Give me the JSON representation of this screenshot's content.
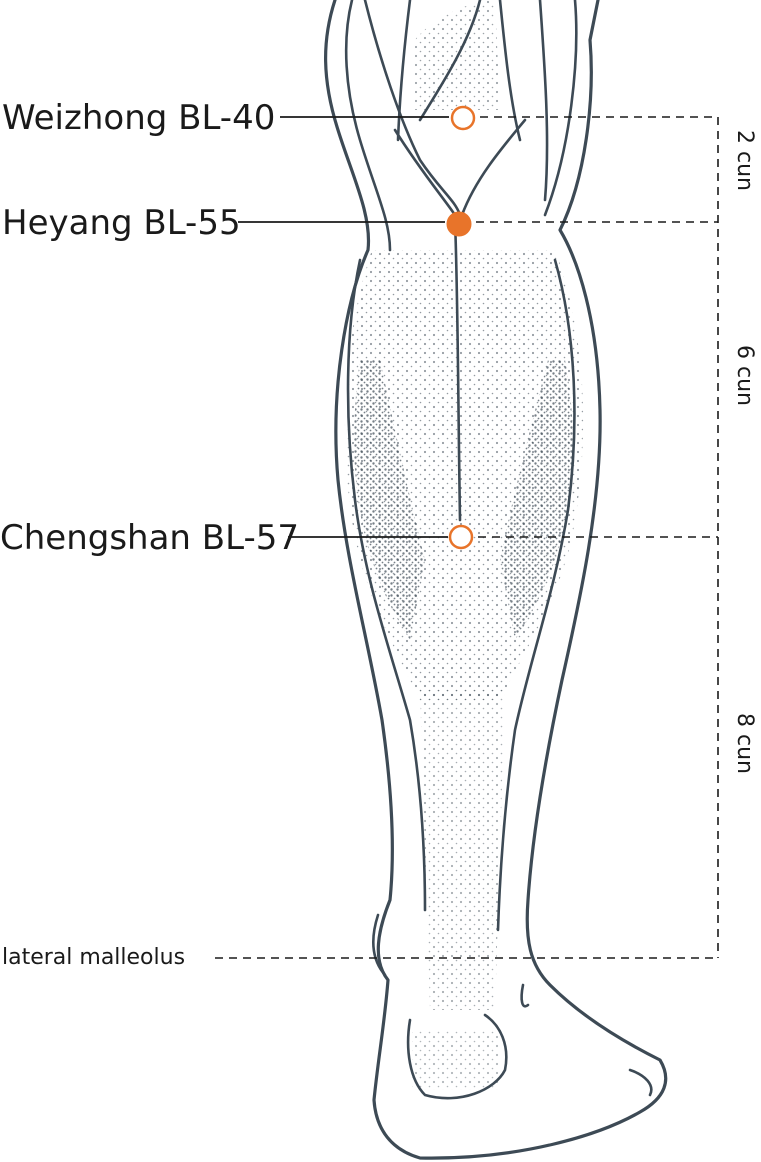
{
  "points": [
    {
      "id": "weizhong",
      "label": "Weizhong BL-40",
      "style": "open"
    },
    {
      "id": "heyang",
      "label": "Heyang BL-55",
      "style": "filled"
    },
    {
      "id": "chengshan",
      "label": "Chengshan BL-57",
      "style": "open"
    }
  ],
  "landmark": {
    "label": "lateral malleolus"
  },
  "measurements": [
    {
      "id": "seg1",
      "label": "2 cun"
    },
    {
      "id": "seg2",
      "label": "6 cun"
    },
    {
      "id": "seg3",
      "label": "8 cun"
    }
  ],
  "colors": {
    "accent": "#e8742a",
    "line": "#3d4a55",
    "text": "#1a1a1a"
  }
}
